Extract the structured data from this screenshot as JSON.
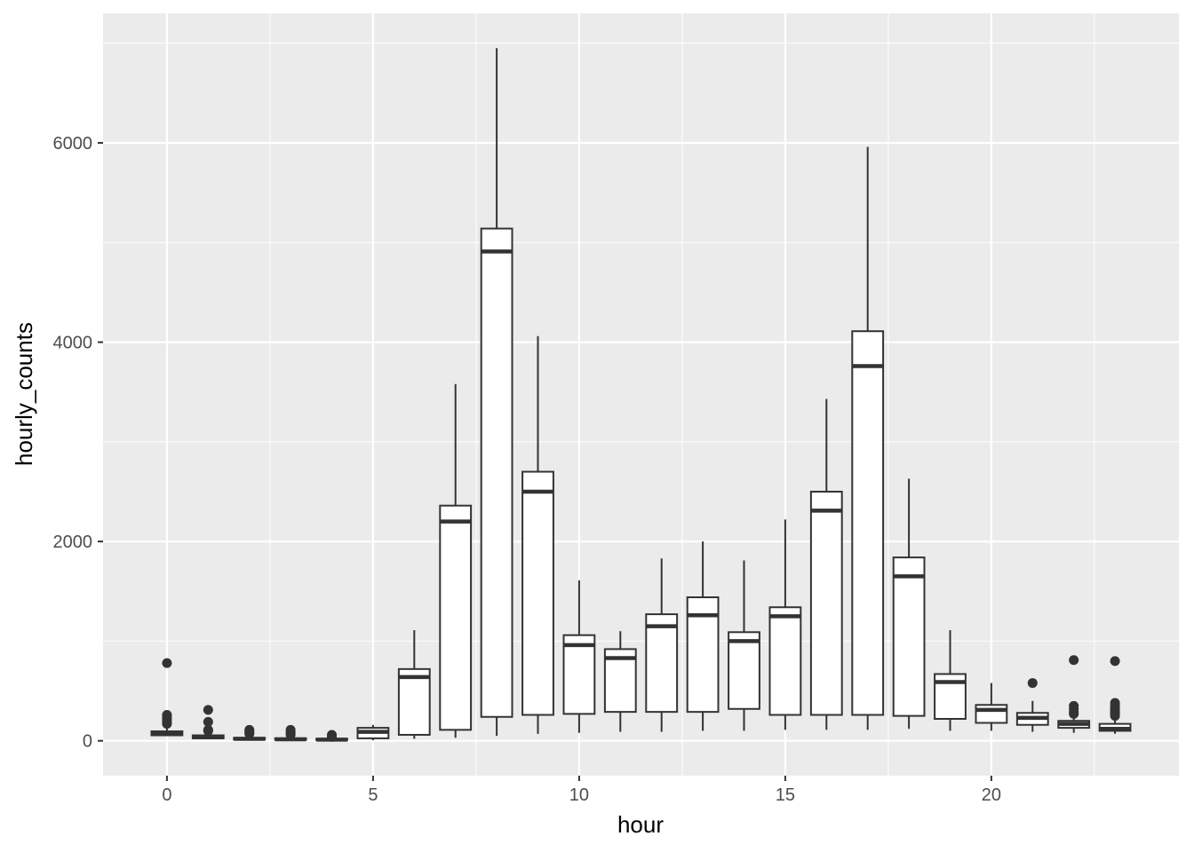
{
  "chart_data": {
    "type": "boxplot",
    "xlabel": "hour",
    "ylabel": "hourly_counts",
    "xlim": [
      -1.55,
      24.55
    ],
    "ylim": [
      -350,
      7300
    ],
    "x_ticks": [
      0,
      5,
      10,
      15,
      20
    ],
    "y_ticks": [
      0,
      2000,
      4000,
      6000
    ],
    "grid": true,
    "colors": {
      "panel": "#ebebeb",
      "grid": "#ffffff",
      "box_fill": "#ffffff",
      "box_line": "#333333",
      "tick_text": "#4d4d4d"
    },
    "boxes": [
      {
        "x": 0,
        "lower": 50,
        "q1": 55,
        "median": 75,
        "q3": 95,
        "upper": 150,
        "outliers": [
          170,
          185,
          200,
          220,
          240,
          260,
          780
        ]
      },
      {
        "x": 1,
        "lower": 20,
        "q1": 25,
        "median": 35,
        "q3": 55,
        "upper": 95,
        "outliers": [
          100,
          110,
          190,
          310
        ]
      },
      {
        "x": 2,
        "lower": 8,
        "q1": 12,
        "median": 20,
        "q3": 30,
        "upper": 55,
        "outliers": [
          70,
          80,
          95,
          110
        ]
      },
      {
        "x": 3,
        "lower": 5,
        "q1": 10,
        "median": 15,
        "q3": 25,
        "upper": 45,
        "outliers": [
          60,
          75,
          90,
          110
        ]
      },
      {
        "x": 4,
        "lower": 5,
        "q1": 8,
        "median": 12,
        "q3": 20,
        "upper": 30,
        "outliers": [
          40,
          50,
          60
        ]
      },
      {
        "x": 5,
        "lower": 5,
        "q1": 25,
        "median": 90,
        "q3": 130,
        "upper": 160,
        "outliers": []
      },
      {
        "x": 6,
        "lower": 20,
        "q1": 60,
        "median": 640,
        "q3": 720,
        "upper": 1110,
        "outliers": []
      },
      {
        "x": 7,
        "lower": 30,
        "q1": 110,
        "median": 2200,
        "q3": 2360,
        "upper": 3580,
        "outliers": []
      },
      {
        "x": 8,
        "lower": 50,
        "q1": 240,
        "median": 4910,
        "q3": 5140,
        "upper": 6950,
        "outliers": []
      },
      {
        "x": 9,
        "lower": 70,
        "q1": 260,
        "median": 2500,
        "q3": 2700,
        "upper": 4060,
        "outliers": []
      },
      {
        "x": 10,
        "lower": 80,
        "q1": 270,
        "median": 960,
        "q3": 1060,
        "upper": 1610,
        "outliers": []
      },
      {
        "x": 11,
        "lower": 90,
        "q1": 290,
        "median": 830,
        "q3": 920,
        "upper": 1100,
        "outliers": []
      },
      {
        "x": 12,
        "lower": 90,
        "q1": 290,
        "median": 1150,
        "q3": 1270,
        "upper": 1830,
        "outliers": []
      },
      {
        "x": 13,
        "lower": 100,
        "q1": 290,
        "median": 1260,
        "q3": 1440,
        "upper": 2000,
        "outliers": []
      },
      {
        "x": 14,
        "lower": 100,
        "q1": 320,
        "median": 1000,
        "q3": 1090,
        "upper": 1810,
        "outliers": []
      },
      {
        "x": 15,
        "lower": 110,
        "q1": 260,
        "median": 1250,
        "q3": 1340,
        "upper": 2220,
        "outliers": []
      },
      {
        "x": 16,
        "lower": 110,
        "q1": 260,
        "median": 2310,
        "q3": 2500,
        "upper": 3430,
        "outliers": []
      },
      {
        "x": 17,
        "lower": 110,
        "q1": 260,
        "median": 3760,
        "q3": 4110,
        "upper": 5960,
        "outliers": []
      },
      {
        "x": 18,
        "lower": 120,
        "q1": 250,
        "median": 1650,
        "q3": 1840,
        "upper": 2630,
        "outliers": []
      },
      {
        "x": 19,
        "lower": 100,
        "q1": 220,
        "median": 590,
        "q3": 670,
        "upper": 1110,
        "outliers": []
      },
      {
        "x": 20,
        "lower": 100,
        "q1": 180,
        "median": 310,
        "q3": 360,
        "upper": 580,
        "outliers": []
      },
      {
        "x": 21,
        "lower": 90,
        "q1": 160,
        "median": 230,
        "q3": 280,
        "upper": 400,
        "outliers": [
          580
        ]
      },
      {
        "x": 22,
        "lower": 80,
        "q1": 130,
        "median": 170,
        "q3": 200,
        "upper": 230,
        "outliers": [
          270,
          290,
          320,
          350,
          810
        ]
      },
      {
        "x": 23,
        "lower": 70,
        "q1": 100,
        "median": 120,
        "q3": 170,
        "upper": 230,
        "outliers": [
          250,
          270,
          290,
          310,
          330,
          350,
          380,
          800
        ]
      }
    ]
  }
}
